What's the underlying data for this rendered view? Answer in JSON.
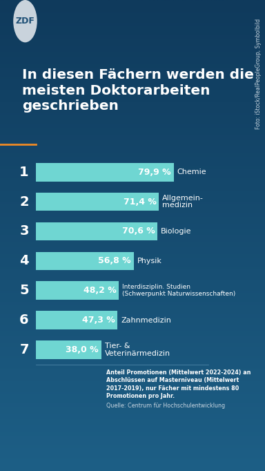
{
  "chart_data": {
    "type": "bar",
    "orientation": "horizontal",
    "title": "In diesen Fächern werden die meisten Doktorarbeiten geschrieben",
    "categories": [
      "Chemie",
      "Allgemein-\nmedizin",
      "Biologie",
      "Physik",
      "Interdisziplin. Studien\n(Schwerpunkt Naturwissenschaften)",
      "Zahnmedizin",
      "Tier- &\nVeterinärmedizin"
    ],
    "ranks": [
      1,
      2,
      3,
      4,
      5,
      6,
      7
    ],
    "values": [
      79.9,
      71.4,
      70.6,
      56.8,
      48.2,
      47.3,
      38.0
    ],
    "value_labels": [
      "79,9 %",
      "71,4 %",
      "70,6 %",
      "56,8 %",
      "48,2 %",
      "47,3 %",
      "38,0 %"
    ],
    "color": "#6fd6d2",
    "xlim": [
      0,
      100
    ],
    "data_labels": true,
    "tick_labels": false,
    "footnote": "Anteil Promotionen (Mittelwert 2022-2024) an Abschlüssen auf Masterniveau (Mittelwert 2017-2019), nur Fächer mit mindestens 80 Promotionen pro Jahr.",
    "source": "Quelle: Centrum für Hochschulentwicklung",
    "logo": "ZDF",
    "photo_credit": "Foto: iStock/RealPeopleGroup, Symbolbild"
  }
}
